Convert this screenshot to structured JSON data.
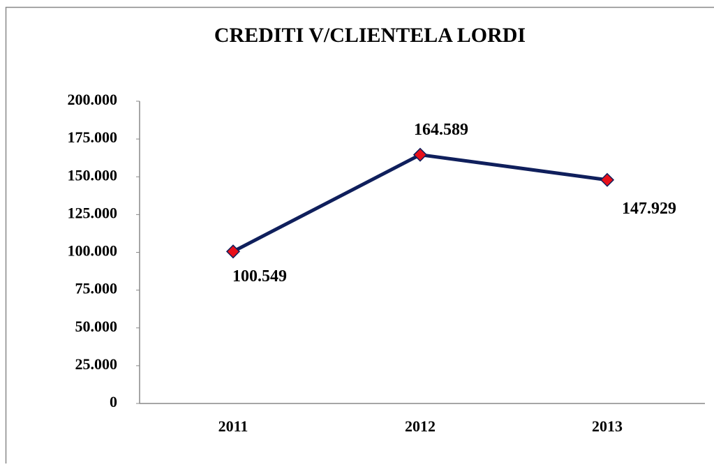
{
  "chart_data": {
    "type": "line",
    "title": "CREDITI V/CLIENTELA LORDI",
    "categories": [
      "2011",
      "2012",
      "2013"
    ],
    "series": [
      {
        "name": "CREDITI V/CLIENTELA LORDI",
        "color": "#0f1f5c",
        "marker_color": "#e8101a",
        "values": [
          100549,
          164589,
          147929
        ],
        "value_labels": [
          "100.549",
          "164.589",
          "147.929"
        ]
      }
    ],
    "ylim": [
      0,
      200000
    ],
    "yticks": [
      0,
      {
        "value": 25000,
        "label": "25.000"
      },
      {
        "value": 50000,
        "label": "50.000"
      },
      {
        "value": 75000,
        "label": "75.000"
      },
      {
        "value": 100000,
        "label": "100.000"
      },
      {
        "value": 125000,
        "label": "125.000"
      },
      {
        "value": 150000,
        "label": "150.000"
      },
      {
        "value": 175000,
        "label": "175.000"
      },
      {
        "value": 200000,
        "label": "200.000"
      }
    ],
    "grid": false
  }
}
